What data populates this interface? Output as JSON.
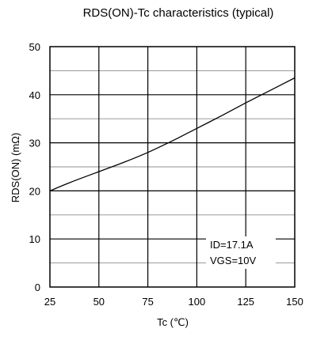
{
  "chart_data": {
    "type": "line",
    "title": "RDS(ON)-Tc characteristics (typical)",
    "xlabel": "Tc (℃)",
    "ylabel": "RDS(ON) (mΩ)",
    "xlim": [
      25,
      150
    ],
    "ylim": [
      0,
      50
    ],
    "x_ticks": [
      25,
      50,
      75,
      100,
      125,
      150
    ],
    "y_ticks": [
      0,
      10,
      20,
      30,
      40,
      50
    ],
    "grid": true,
    "series": [
      {
        "x": [
          25,
          35,
          50,
          62.5,
          75,
          87.5,
          100,
          112.5,
          125,
          137.5,
          150
        ],
        "y": [
          20.0,
          21.7,
          24.0,
          25.9,
          28.0,
          30.4,
          33.0,
          35.6,
          38.3,
          40.9,
          43.5
        ]
      }
    ],
    "annotations": [
      "ID=17.1A",
      "VGS=10V"
    ]
  }
}
